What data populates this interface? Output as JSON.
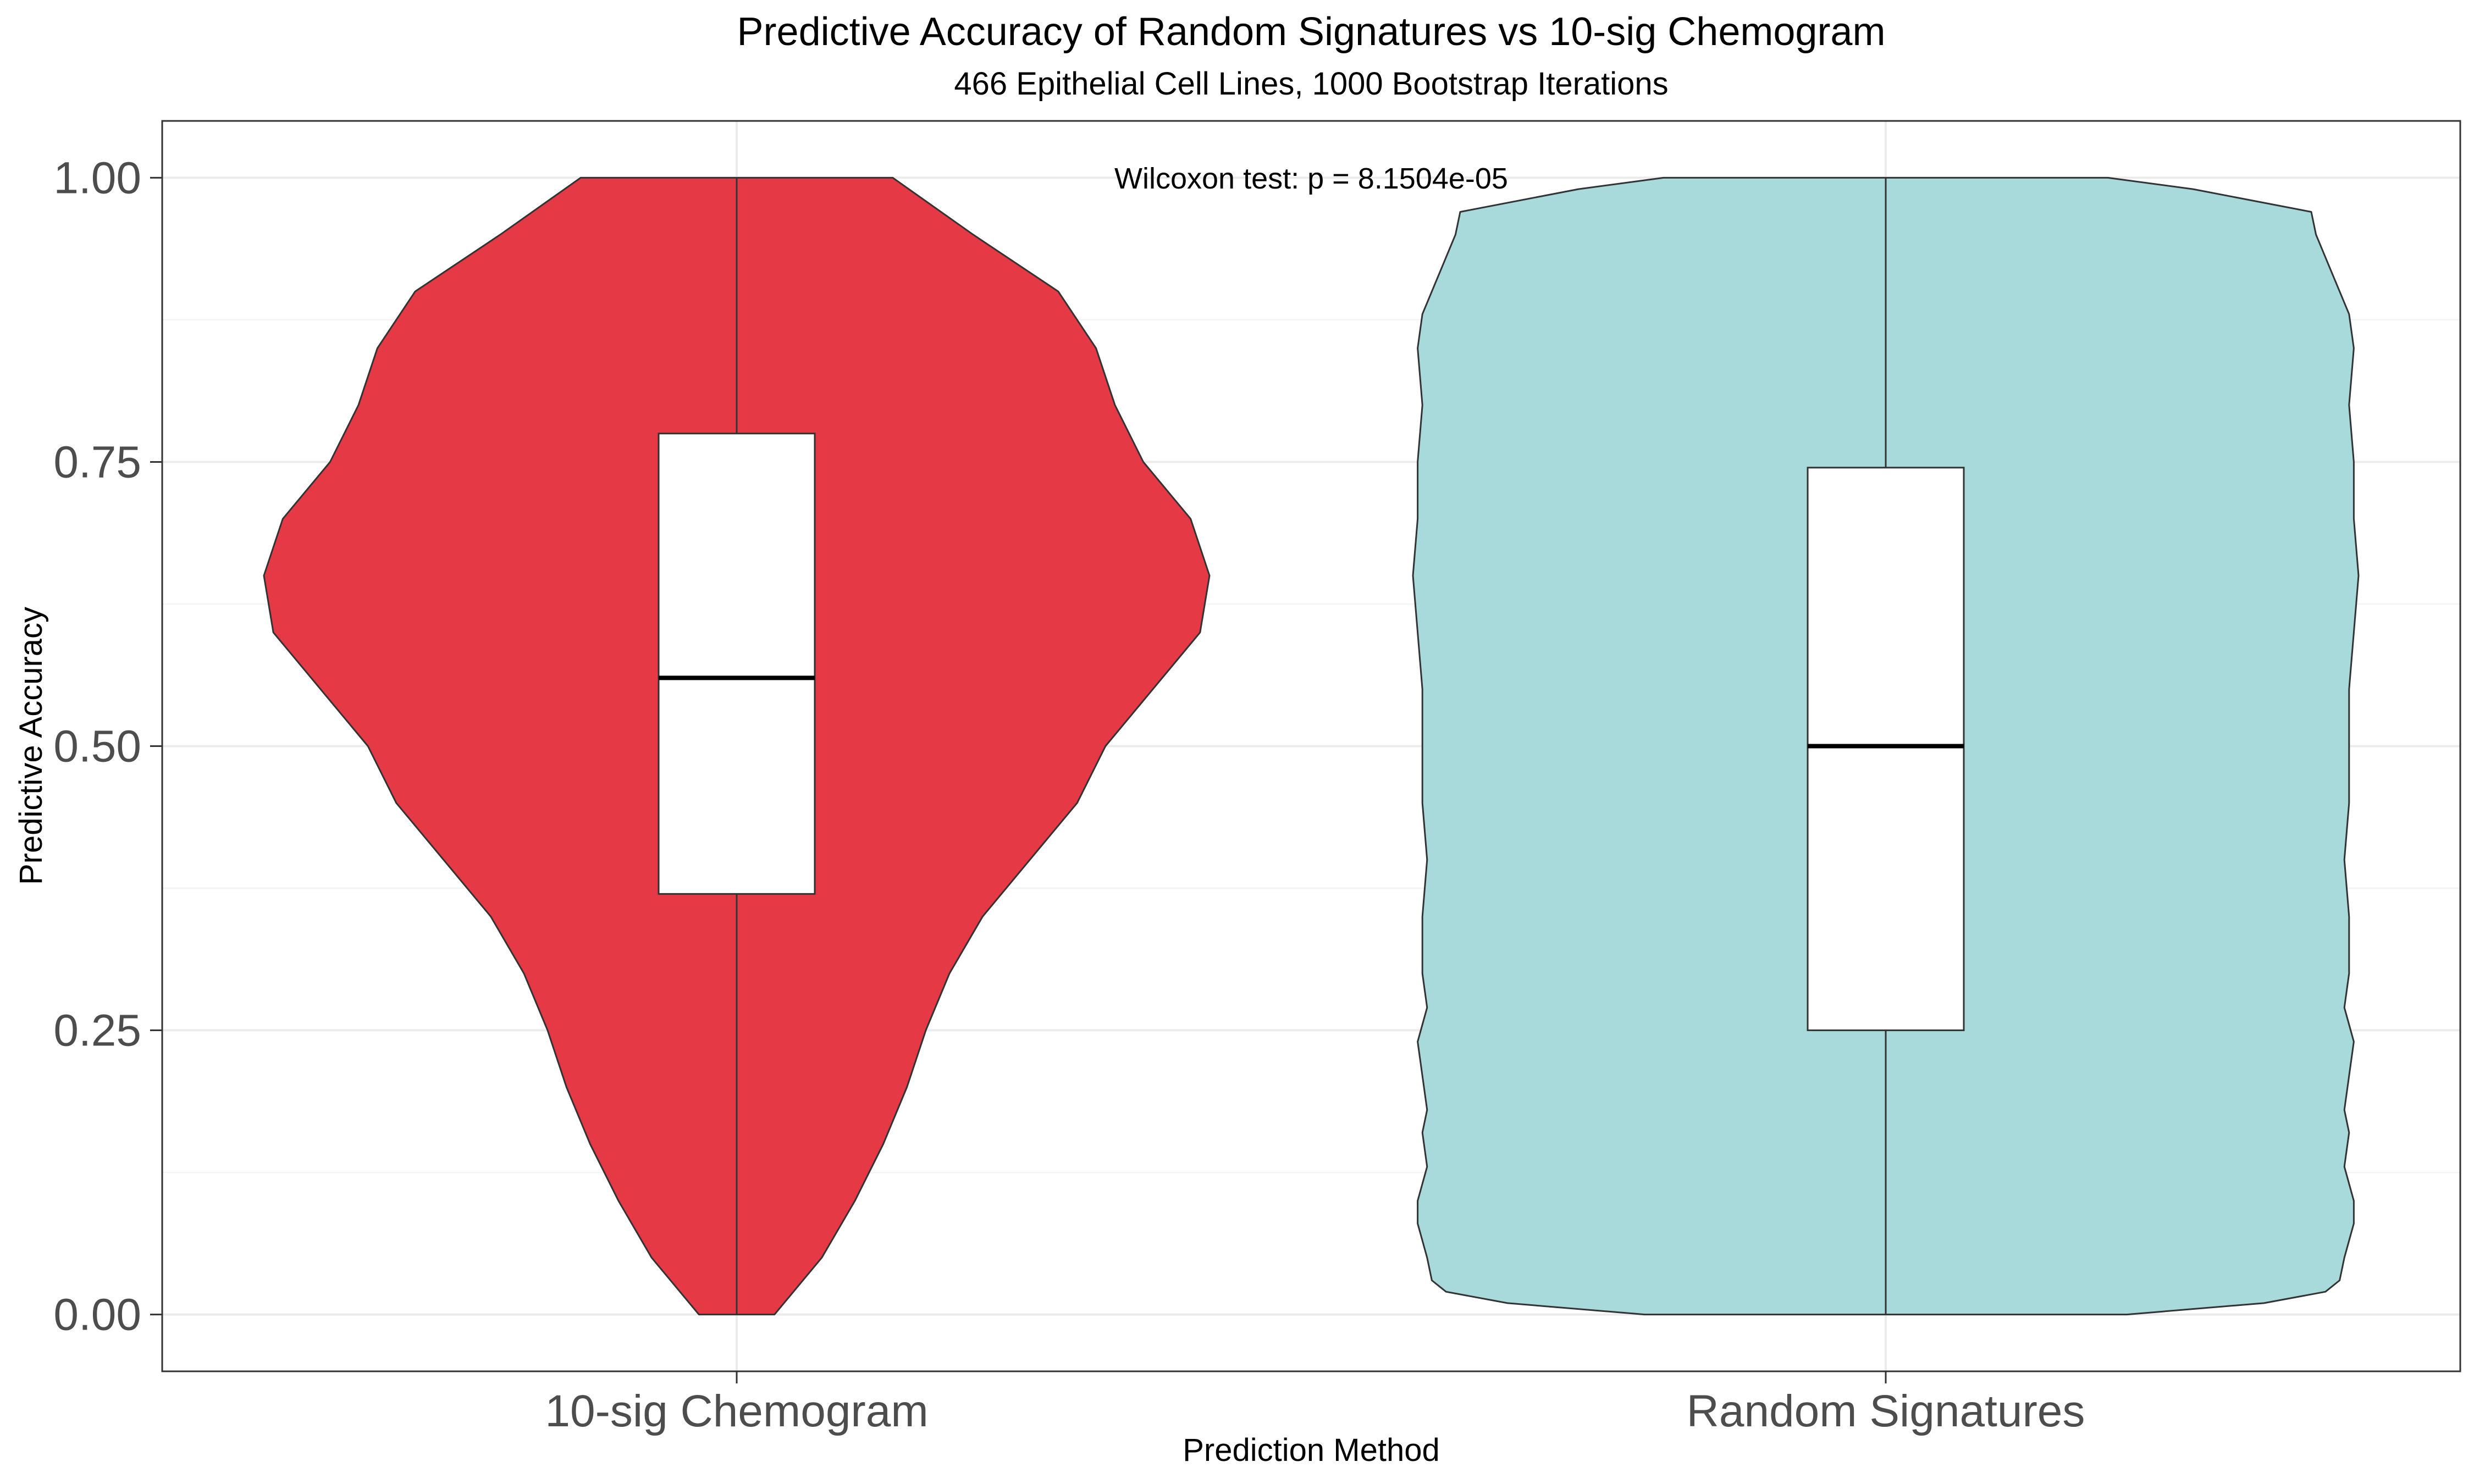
{
  "chart_data": {
    "type": "violin",
    "title": "Predictive Accuracy of Random Signatures vs 10-sig Chemogram",
    "subtitle": "466 Epithelial Cell Lines, 1000 Bootstrap Iterations",
    "xlabel": "Prediction Method",
    "ylabel": "Predictive Accuracy",
    "ylim": [
      -0.05,
      1.05
    ],
    "yticks": [
      "0.00",
      "0.25",
      "0.50",
      "0.75",
      "1.00"
    ],
    "grid": true,
    "annotation": "Wilcoxon test: p = 8.1504e-05",
    "categories": [
      "10-sig Chemogram",
      "Random Signatures"
    ],
    "series": [
      {
        "category": "10-sig Chemogram",
        "color": "#e63946",
        "box": {
          "min": 0.0,
          "q1": 0.37,
          "median": 0.56,
          "q3": 0.775,
          "max": 1.0
        },
        "density_profile": [
          [
            0.0,
            0.08
          ],
          [
            0.05,
            0.18
          ],
          [
            0.1,
            0.25
          ],
          [
            0.15,
            0.31
          ],
          [
            0.2,
            0.36
          ],
          [
            0.25,
            0.4
          ],
          [
            0.3,
            0.45
          ],
          [
            0.35,
            0.52
          ],
          [
            0.4,
            0.62
          ],
          [
            0.45,
            0.72
          ],
          [
            0.5,
            0.78
          ],
          [
            0.55,
            0.88
          ],
          [
            0.6,
            0.98
          ],
          [
            0.65,
            1.0
          ],
          [
            0.7,
            0.96
          ],
          [
            0.75,
            0.86
          ],
          [
            0.8,
            0.8
          ],
          [
            0.85,
            0.76
          ],
          [
            0.9,
            0.68
          ],
          [
            0.95,
            0.5
          ],
          [
            1.0,
            0.33
          ]
        ]
      },
      {
        "category": "Random Signatures",
        "color": "#a8dadc",
        "box": {
          "min": 0.0,
          "q1": 0.25,
          "median": 0.5,
          "q3": 0.745,
          "max": 1.0
        },
        "density_profile": [
          [
            0.0,
            0.51
          ],
          [
            0.01,
            0.8
          ],
          [
            0.02,
            0.93
          ],
          [
            0.03,
            0.96
          ],
          [
            0.05,
            0.97
          ],
          [
            0.08,
            0.99
          ],
          [
            0.1,
            0.99
          ],
          [
            0.13,
            0.97
          ],
          [
            0.16,
            0.98
          ],
          [
            0.18,
            0.97
          ],
          [
            0.21,
            0.98
          ],
          [
            0.24,
            0.99
          ],
          [
            0.27,
            0.97
          ],
          [
            0.3,
            0.98
          ],
          [
            0.35,
            0.98
          ],
          [
            0.4,
            0.97
          ],
          [
            0.45,
            0.98
          ],
          [
            0.5,
            0.98
          ],
          [
            0.55,
            0.98
          ],
          [
            0.6,
            0.99
          ],
          [
            0.65,
            1.0
          ],
          [
            0.7,
            0.99
          ],
          [
            0.75,
            0.99
          ],
          [
            0.8,
            0.98
          ],
          [
            0.85,
            0.99
          ],
          [
            0.88,
            0.98
          ],
          [
            0.9,
            0.96
          ],
          [
            0.92,
            0.94
          ],
          [
            0.95,
            0.91
          ],
          [
            0.97,
            0.9
          ],
          [
            0.99,
            0.65
          ],
          [
            1.0,
            0.47
          ]
        ]
      }
    ]
  }
}
